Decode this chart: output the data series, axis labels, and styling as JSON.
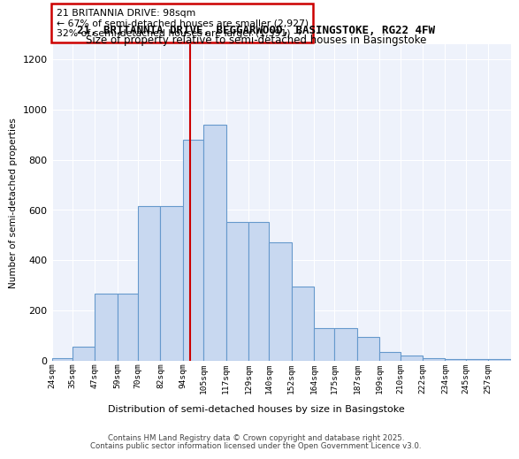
{
  "title1": "21, BRITANNIA DRIVE, BEGGARWOOD, BASINGSTOKE, RG22 4FW",
  "title2": "Size of property relative to semi-detached houses in Basingstoke",
  "xlabel": "Distribution of semi-detached houses by size in Basingstoke",
  "ylabel": "Number of semi-detached properties",
  "footnote1": "Contains HM Land Registry data © Crown copyright and database right 2025.",
  "footnote2": "Contains public sector information licensed under the Open Government Licence v3.0.",
  "annotation_title": "21 BRITANNIA DRIVE: 98sqm",
  "annotation_line1": "← 67% of semi-detached houses are smaller (2,927)",
  "annotation_line2": "32% of semi-detached houses are larger (1,391) →",
  "property_size": 98,
  "bin_edges": [
    24,
    35,
    47,
    59,
    70,
    82,
    94,
    105,
    117,
    129,
    140,
    152,
    164,
    175,
    187,
    199,
    210,
    222,
    234,
    245,
    257,
    269
  ],
  "heights": [
    10,
    55,
    265,
    265,
    615,
    615,
    880,
    940,
    550,
    550,
    470,
    295,
    130,
    130,
    95,
    35,
    18,
    10,
    5,
    5,
    5
  ],
  "categories": [
    "24sqm",
    "35sqm",
    "47sqm",
    "59sqm",
    "70sqm",
    "82sqm",
    "94sqm",
    "105sqm",
    "117sqm",
    "129sqm",
    "140sqm",
    "152sqm",
    "164sqm",
    "175sqm",
    "187sqm",
    "199sqm",
    "210sqm",
    "222sqm",
    "234sqm",
    "245sqm",
    "257sqm"
  ],
  "bar_color": "#c8d8f0",
  "bar_edge_color": "#6699cc",
  "vline_color": "#cc0000",
  "background_color": "#eef2fb",
  "grid_color": "#ffffff",
  "ylim": [
    0,
    1260
  ],
  "yticks": [
    0,
    200,
    400,
    600,
    800,
    1000,
    1200
  ],
  "title1_fontsize": 9,
  "title2_fontsize": 8.5
}
